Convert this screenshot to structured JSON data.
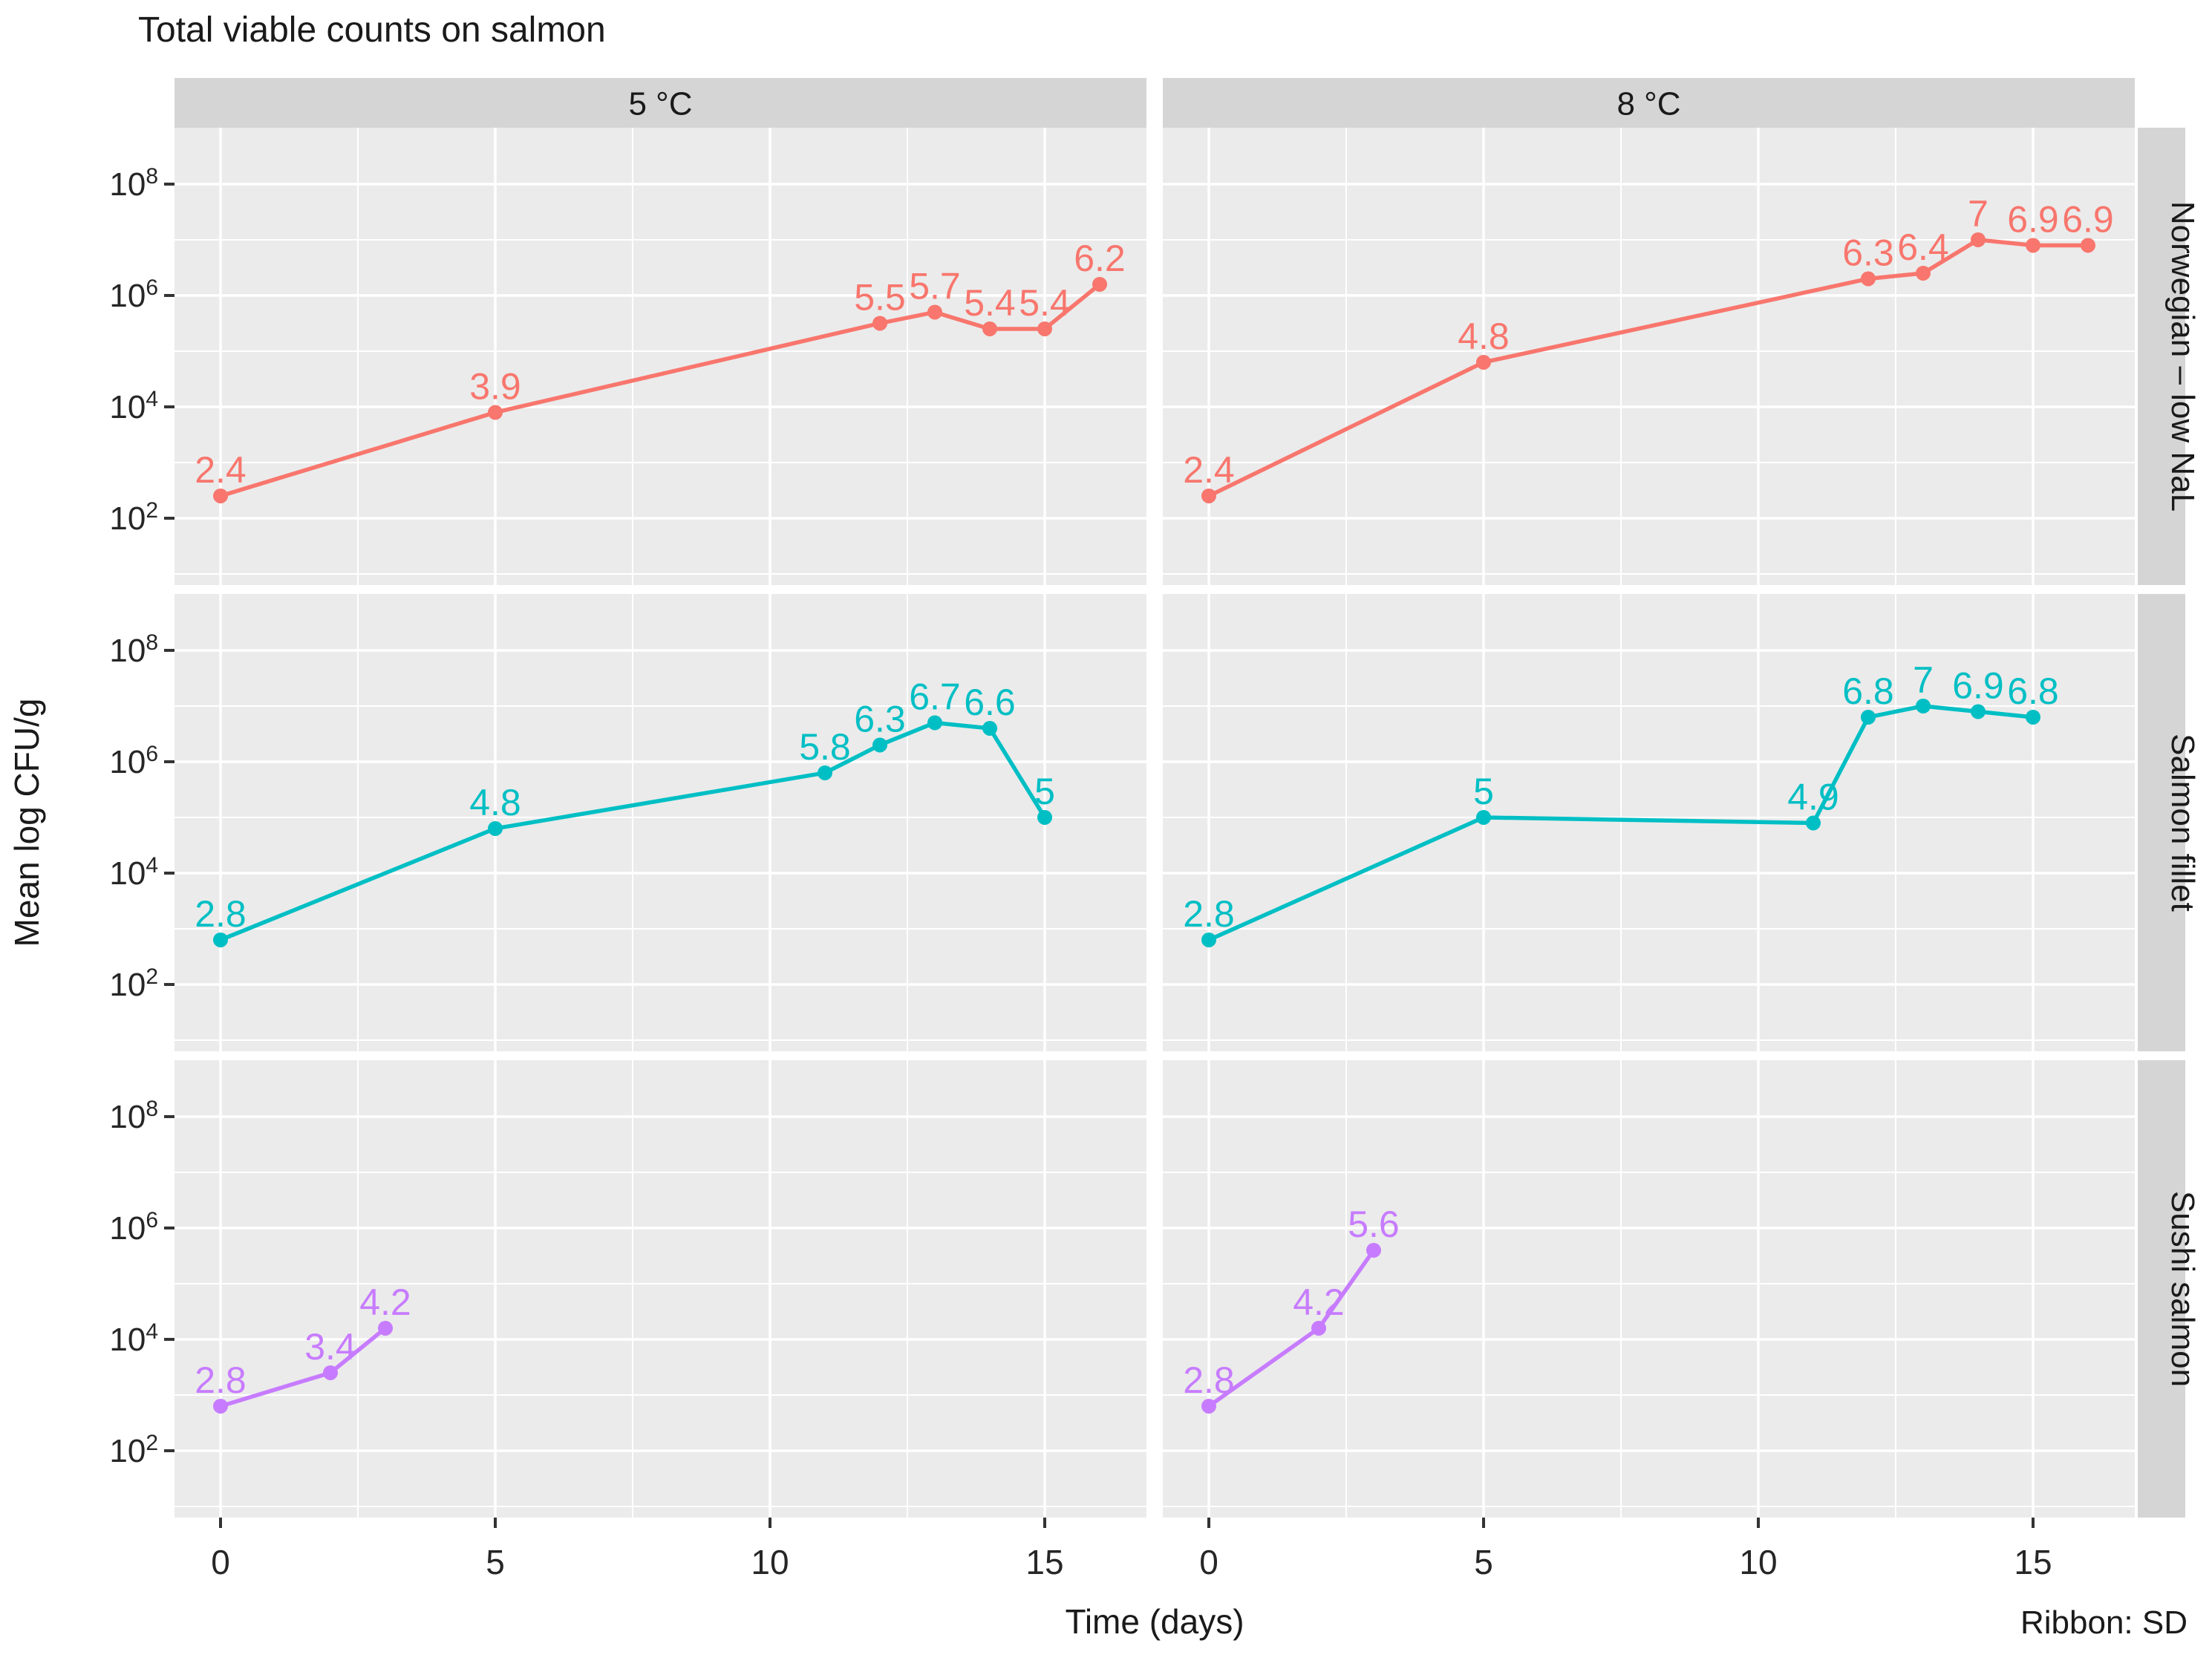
{
  "title": "Total viable counts on salmon",
  "caption": "Ribbon: SD",
  "axes": {
    "x_label": "Time (days)",
    "y_label": "Mean log CFU/g",
    "x_ticks": [
      0,
      5,
      10,
      15
    ],
    "y_tick_exponents": [
      2,
      4,
      6,
      8
    ],
    "y_tick_base": "10"
  },
  "facets": {
    "columns": [
      "5 °C",
      "8 °C"
    ],
    "rows": [
      "Norwegian – low NaL",
      "Salmon fillet",
      "Sushi salmon"
    ]
  },
  "colors": {
    "Norwegian – low NaL": "#F8766D",
    "Salmon fillet": "#00BFC4",
    "Sushi salmon": "#C77CFF",
    "panel_background": "#EBEBEB",
    "strip_background": "#D5D5D5",
    "gridline": "#FFFFFF",
    "tick_mark": "#333333",
    "text": "#262626"
  },
  "chart_data": {
    "type": "line",
    "y_scale": "log10",
    "x_range": [
      0,
      16
    ],
    "ylim_log10": [
      0.8,
      9.0
    ],
    "grid": {
      "x_major": [
        0,
        5,
        10,
        15
      ],
      "x_minor": [
        2.5,
        7.5,
        12.5
      ],
      "y_major_exp": [
        2,
        4,
        6,
        8
      ],
      "y_minor_exp": [
        1,
        3,
        5,
        7
      ]
    },
    "legend_position": "none",
    "point_labels_shown": true,
    "series": [
      {
        "row": "Norwegian – low NaL",
        "column": "5 °C",
        "color": "#F8766D",
        "points": [
          {
            "x": 0,
            "y": 2.4
          },
          {
            "x": 5,
            "y": 3.9
          },
          {
            "x": 12,
            "y": 5.5
          },
          {
            "x": 13,
            "y": 5.7
          },
          {
            "x": 14,
            "y": 5.4
          },
          {
            "x": 15,
            "y": 5.4
          },
          {
            "x": 16,
            "y": 6.2
          }
        ]
      },
      {
        "row": "Norwegian – low NaL",
        "column": "8 °C",
        "color": "#F8766D",
        "points": [
          {
            "x": 0,
            "y": 2.4
          },
          {
            "x": 5,
            "y": 4.8
          },
          {
            "x": 12,
            "y": 6.3
          },
          {
            "x": 13,
            "y": 6.4
          },
          {
            "x": 14,
            "y": 7
          },
          {
            "x": 15,
            "y": 6.9
          },
          {
            "x": 16,
            "y": 6.9
          }
        ]
      },
      {
        "row": "Salmon fillet",
        "column": "5 °C",
        "color": "#00BFC4",
        "points": [
          {
            "x": 0,
            "y": 2.8
          },
          {
            "x": 5,
            "y": 4.8
          },
          {
            "x": 11,
            "y": 5.8
          },
          {
            "x": 12,
            "y": 6.3
          },
          {
            "x": 13,
            "y": 6.7
          },
          {
            "x": 14,
            "y": 6.6
          },
          {
            "x": 15,
            "y": 5
          }
        ]
      },
      {
        "row": "Salmon fillet",
        "column": "8 °C",
        "color": "#00BFC4",
        "points": [
          {
            "x": 0,
            "y": 2.8
          },
          {
            "x": 5,
            "y": 5
          },
          {
            "x": 11,
            "y": 4.9
          },
          {
            "x": 12,
            "y": 6.8
          },
          {
            "x": 13,
            "y": 7
          },
          {
            "x": 14,
            "y": 6.9
          },
          {
            "x": 15,
            "y": 6.8
          }
        ]
      },
      {
        "row": "Sushi salmon",
        "column": "5 °C",
        "color": "#C77CFF",
        "points": [
          {
            "x": 0,
            "y": 2.8
          },
          {
            "x": 2,
            "y": 3.4
          },
          {
            "x": 3,
            "y": 4.2
          }
        ]
      },
      {
        "row": "Sushi salmon",
        "column": "8 °C",
        "color": "#C77CFF",
        "points": [
          {
            "x": 0,
            "y": 2.8
          },
          {
            "x": 2,
            "y": 4.2
          },
          {
            "x": 3,
            "y": 5.6
          }
        ]
      }
    ]
  }
}
